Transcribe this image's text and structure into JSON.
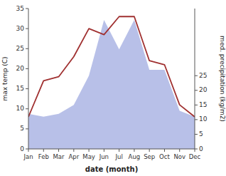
{
  "chart_data": {
    "type": "line",
    "categories": [
      "Jan",
      "Feb",
      "Mar",
      "Apr",
      "May",
      "Jun",
      "Jul",
      "Aug",
      "Sep",
      "Oct",
      "Nov",
      "Dec"
    ],
    "series": [
      {
        "type": "area",
        "axis": "y2",
        "color": "#b8c0e8",
        "values": [
          12,
          11,
          12,
          15,
          25,
          44,
          34,
          44,
          27,
          27,
          13,
          11
        ]
      },
      {
        "type": "line",
        "color": "#a03030",
        "values": [
          8,
          17,
          18,
          23,
          30,
          28.5,
          33,
          33,
          22,
          21,
          11,
          8
        ]
      }
    ],
    "ylim": [
      0,
      35
    ],
    "yticks": [
      0,
      5,
      10,
      15,
      20,
      25,
      30,
      35
    ],
    "y2lim": [
      0,
      47.916
    ],
    "y2ticks": [
      0,
      5,
      10,
      15,
      20,
      25
    ],
    "xlabel": "date (month)",
    "ylabel": "max temp (C)",
    "y2label": "med. precipitation (kg/m2)",
    "grid": false
  }
}
